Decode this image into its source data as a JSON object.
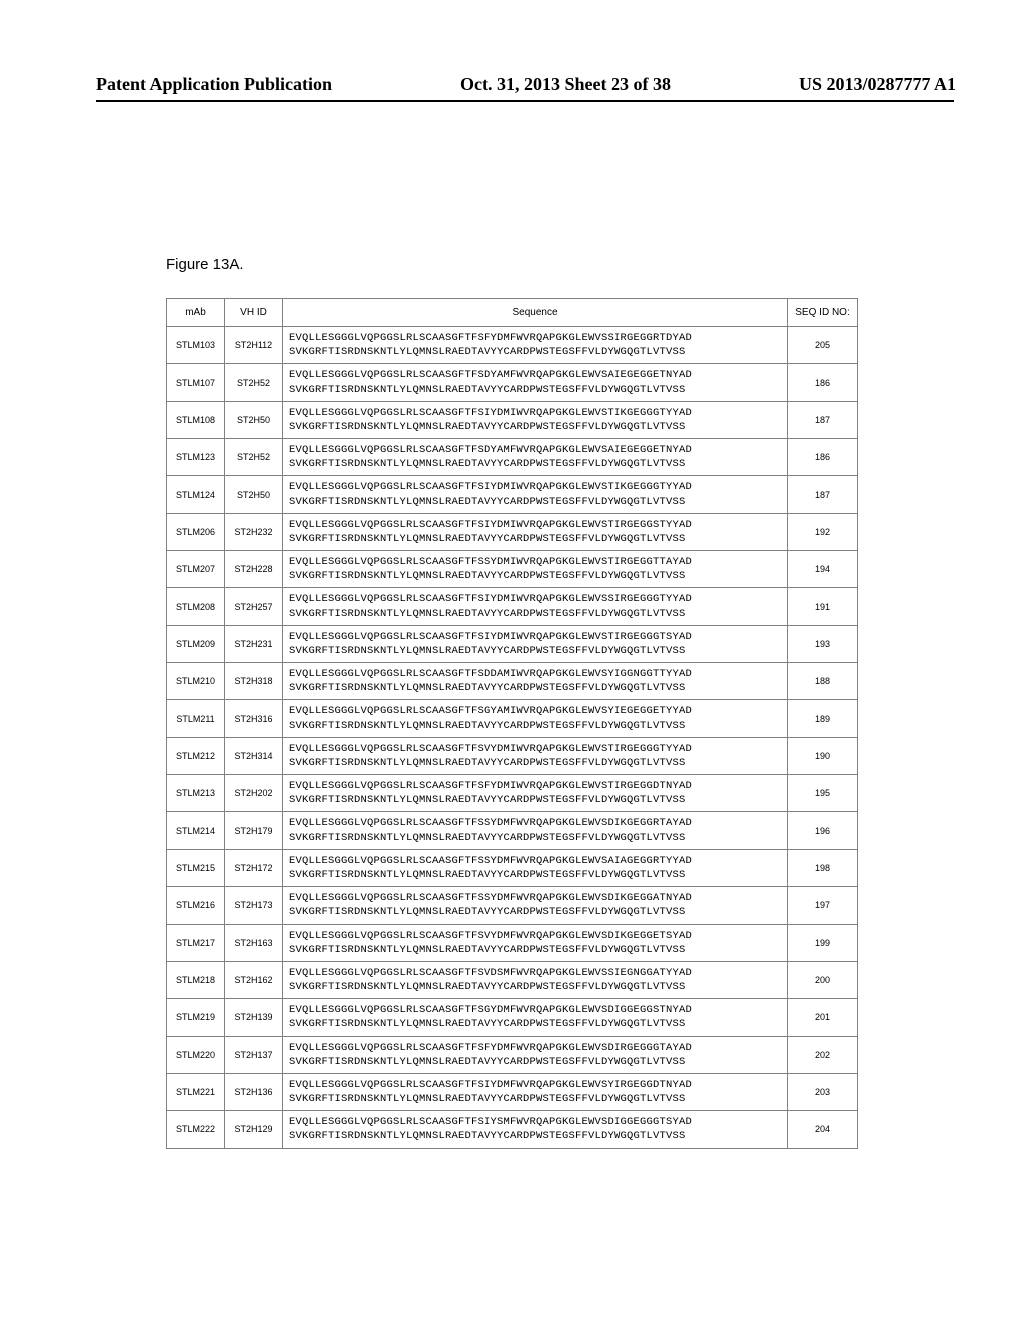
{
  "header": {
    "left": "Patent Application Publication",
    "center": "Oct. 31, 2013  Sheet 23 of 38",
    "right": "US 2013/0287777 A1"
  },
  "figure_label": "Figure 13A.",
  "table": {
    "columns": [
      "mAb",
      "VH ID",
      "Sequence",
      "SEQ ID NO:"
    ],
    "rows": [
      {
        "mab": "STLM103",
        "vhid": "ST2H112",
        "seq": "EVQLLESGGGLVQPGGSLRLSCAASGFTFSFYDMFWVRQAPGKGLEWVSSIRGEGGRTDYAD\nSVKGRFTISRDNSKNTLYLQMNSLRAEDTAVYYCARDPWSTEGSFFVLDYWGQGTLVTVSS",
        "seqid": "205"
      },
      {
        "mab": "STLM107",
        "vhid": "ST2H52",
        "seq": "EVQLLESGGGLVQPGGSLRLSCAASGFTFSDYAMFWVRQAPGKGLEWVSAIEGEGGETNYAD\nSVKGRFTISRDNSKNTLYLQMNSLRAEDTAVYYCARDPWSTEGSFFVLDYWGQGTLVTVSS",
        "seqid": "186"
      },
      {
        "mab": "STLM108",
        "vhid": "ST2H50",
        "seq": "EVQLLESGGGLVQPGGSLRLSCAASGFTFSIYDMIWVRQAPGKGLEWVSTIKGEGGGTYYAD\nSVKGRFTISRDNSKNTLYLQMNSLRAEDTAVYYCARDPWSTEGSFFVLDYWGQGTLVTVSS",
        "seqid": "187"
      },
      {
        "mab": "STLM123",
        "vhid": "ST2H52",
        "seq": "EVQLLESGGGLVQPGGSLRLSCAASGFTFSDYAMFWVRQAPGKGLEWVSAIEGEGGETNYAD\nSVKGRFTISRDNSKNTLYLQMNSLRAEDTAVYYCARDPWSTEGSFFVLDYWGQGTLVTVSS",
        "seqid": "186"
      },
      {
        "mab": "STLM124",
        "vhid": "ST2H50",
        "seq": "EVQLLESGGGLVQPGGSLRLSCAASGFTFSIYDMIWVRQAPGKGLEWVSTIKGEGGGTYYAD\nSVKGRFTISRDNSKNTLYLQMNSLRAEDTAVYYCARDPWSTEGSFFVLDYWGQGTLVTVSS",
        "seqid": "187"
      },
      {
        "mab": "STLM206",
        "vhid": "ST2H232",
        "seq": "EVQLLESGGGLVQPGGSLRLSCAASGFTFSIYDMIWVRQAPGKGLEWVSTIRGEGGSTYYAD\nSVKGRFTISRDNSKNTLYLQMNSLRAEDTAVYYCARDPWSTEGSFFVLDYWGQGTLVTVSS",
        "seqid": "192"
      },
      {
        "mab": "STLM207",
        "vhid": "ST2H228",
        "seq": "EVQLLESGGGLVQPGGSLRLSCAASGFTFSSYDMIWVRQAPGKGLEWVSTIRGEGGTTAYAD\nSVKGRFTISRDNSKNTLYLQMNSLRAEDTAVYYCARDPWSTEGSFFVLDYWGQGTLVTVSS",
        "seqid": "194"
      },
      {
        "mab": "STLM208",
        "vhid": "ST2H257",
        "seq": "EVQLLESGGGLVQPGGSLRLSCAASGFTFSIYDMIWVRQAPGKGLEWVSSIRGEGGGTYYAD\nSVKGRFTISRDNSKNTLYLQMNSLRAEDTAVYYCARDPWSTEGSFFVLDYWGQGTLVTVSS",
        "seqid": "191"
      },
      {
        "mab": "STLM209",
        "vhid": "ST2H231",
        "seq": "EVQLLESGGGLVQPGGSLRLSCAASGFTFSIYDMIWVRQAPGKGLEWVSTIRGEGGGTSYAD\nSVKGRFTISRDNSKNTLYLQMNSLRAEDTAVYYCARDPWSTEGSFFVLDYWGQGTLVTVSS",
        "seqid": "193"
      },
      {
        "mab": "STLM210",
        "vhid": "ST2H318",
        "seq": "EVQLLESGGGLVQPGGSLRLSCAASGFTFSDDAMIWVRQAPGKGLEWVSYIGGNGGTTYYAD\nSVKGRFTISRDNSKNTLYLQMNSLRAEDTAVYYCARDPWSTEGSFFVLDYWGQGTLVTVSS",
        "seqid": "188"
      },
      {
        "mab": "STLM211",
        "vhid": "ST2H316",
        "seq": "EVQLLESGGGLVQPGGSLRLSCAASGFTFSGYAMIWVRQAPGKGLEWVSYIEGEGGETYYAD\nSVKGRFTISRDNSKNTLYLQMNSLRAEDTAVYYCARDPWSTEGSFFVLDYWGQGTLVTVSS",
        "seqid": "189"
      },
      {
        "mab": "STLM212",
        "vhid": "ST2H314",
        "seq": "EVQLLESGGGLVQPGGSLRLSCAASGFTFSVYDMIWVRQAPGKGLEWVSTIRGEGGGTYYAD\nSVKGRFTISRDNSKNTLYLQMNSLRAEDTAVYYCARDPWSTEGSFFVLDYWGQGTLVTVSS",
        "seqid": "190"
      },
      {
        "mab": "STLM213",
        "vhid": "ST2H202",
        "seq": "EVQLLESGGGLVQPGGSLRLSCAASGFTFSFYDMIWVRQAPGKGLEWVSTIRGEGGDTNYAD\nSVKGRFTISRDNSKNTLYLQMNSLRAEDTAVYYCARDPWSTEGSFFVLDYWGQGTLVTVSS",
        "seqid": "195"
      },
      {
        "mab": "STLM214",
        "vhid": "ST2H179",
        "seq": "EVQLLESGGGLVQPGGSLRLSCAASGFTFSSYDMFWVRQAPGKGLEWVSDIKGEGGRTAYAD\nSVKGRFTISRDNSKNTLYLQMNSLRAEDTAVYYCARDPWSTEGSFFVLDYWGQGTLVTVSS",
        "seqid": "196"
      },
      {
        "mab": "STLM215",
        "vhid": "ST2H172",
        "seq": "EVQLLESGGGLVQPGGSLRLSCAASGFTFSSYDMFWVRQAPGKGLEWVSAIAGEGGRTYYAD\nSVKGRFTISRDNSKNTLYLQMNSLRAEDTAVYYCARDPWSTEGSFFVLDYWGQGTLVTVSS",
        "seqid": "198"
      },
      {
        "mab": "STLM216",
        "vhid": "ST2H173",
        "seq": "EVQLLESGGGLVQPGGSLRLSCAASGFTFSSYDMFWVRQAPGKGLEWVSDIKGEGGATNYAD\nSVKGRFTISRDNSKNTLYLQMNSLRAEDTAVYYCARDPWSTEGSFFVLDYWGQGTLVTVSS",
        "seqid": "197"
      },
      {
        "mab": "STLM217",
        "vhid": "ST2H163",
        "seq": "EVQLLESGGGLVQPGGSLRLSCAASGFTFSVYDMFWVRQAPGKGLEWVSDIKGEGGETSYAD\nSVKGRFTISRDNSKNTLYLQMNSLRAEDTAVYYCARDPWSTEGSFFVLDYWGQGTLVTVSS",
        "seqid": "199"
      },
      {
        "mab": "STLM218",
        "vhid": "ST2H162",
        "seq": "EVQLLESGGGLVQPGGSLRLSCAASGFTFSVDSMFWVRQAPGKGLEWVSSIEGNGGATYYAD\nSVKGRFTISRDNSKNTLYLQMNSLRAEDTAVYYCARDPWSTEGSFFVLDYWGQGTLVTVSS",
        "seqid": "200"
      },
      {
        "mab": "STLM219",
        "vhid": "ST2H139",
        "seq": "EVQLLESGGGLVQPGGSLRLSCAASGFTFSGYDMFWVRQAPGKGLEWVSDIGGEGGSTNYAD\nSVKGRFTISRDNSKNTLYLQMNSLRAEDTAVYYCARDPWSTEGSFFVLDYWGQGTLVTVSS",
        "seqid": "201"
      },
      {
        "mab": "STLM220",
        "vhid": "ST2H137",
        "seq": "EVQLLESGGGLVQPGGSLRLSCAASGFTFSFYDMFWVRQAPGKGLEWVSDIRGEGGGTAYAD\nSVKGRFTISRDNSKNTLYLQMNSLRAEDTAVYYCARDPWSTEGSFFVLDYWGQGTLVTVSS",
        "seqid": "202"
      },
      {
        "mab": "STLM221",
        "vhid": "ST2H136",
        "seq": "EVQLLESGGGLVQPGGSLRLSCAASGFTFSIYDMFWVRQAPGKGLEWVSYIRGEGGDTNYAD\nSVKGRFTISRDNSKNTLYLQMNSLRAEDTAVYYCARDPWSTEGSFFVLDYWGQGTLVTVSS",
        "seqid": "203"
      },
      {
        "mab": "STLM222",
        "vhid": "ST2H129",
        "seq": "EVQLLESGGGLVQPGGSLRLSCAASGFTFSIYSMFWVRQAPGKGLEWVSDIGGEGGGTSYAD\nSVKGRFTISRDNSKNTLYLQMNSLRAEDTAVYYCARDPWSTEGSFFVLDYWGQGTLVTVSS",
        "seqid": "204"
      }
    ]
  }
}
